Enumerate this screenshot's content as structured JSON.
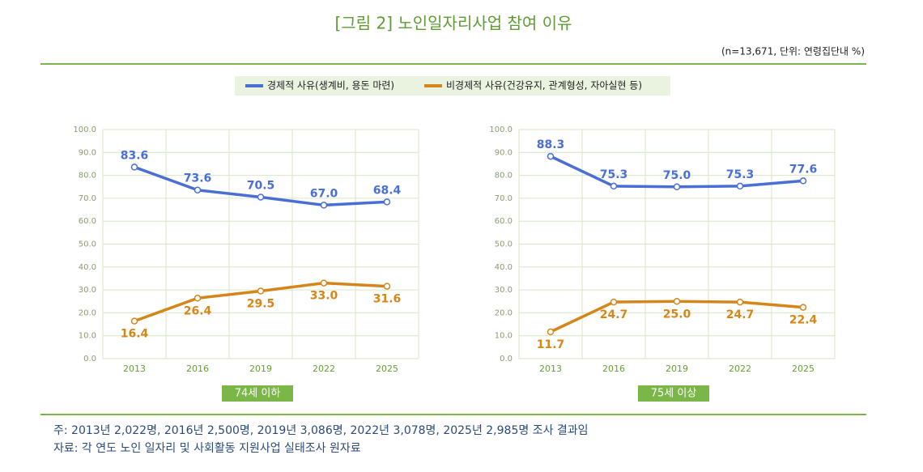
{
  "title": "[그림 2] 노인일자리사업 참여 이유",
  "unit_note": "(n=13,671, 단위: 연령집단내 %)",
  "footnotes": [
    "주: 2013년 2,022명, 2016년 2,500명, 2019년 3,086명, 2022년 3,078명, 2025년 2,985명 조사 결과임",
    "자료: 각 연도 노인 일자리 및 사회활동 지원사업 실태조사 원자료"
  ],
  "chart_data": [
    {
      "type": "line",
      "panel_label": "74세 이하",
      "categories": [
        "2013",
        "2016",
        "2019",
        "2022",
        "2025"
      ],
      "ylim": [
        0,
        100
      ],
      "yticks": [
        {
          "value": 0,
          "label": "0.0"
        },
        {
          "value": 10,
          "label": "10.0"
        },
        {
          "value": 20,
          "label": "20.0"
        },
        {
          "value": 30,
          "label": "30.0"
        },
        {
          "value": 40,
          "label": "40.0"
        },
        {
          "value": 50,
          "label": "50.0"
        },
        {
          "value": 60,
          "label": "60.0"
        },
        {
          "value": 70,
          "label": "70.0"
        },
        {
          "value": 80,
          "label": "80.0"
        },
        {
          "value": 90,
          "label": "90.0"
        },
        {
          "value": 100,
          "label": "100.0"
        }
      ],
      "grid": true,
      "series": [
        {
          "name": "경제적 사유(생계비, 용돈 마련)",
          "color": "#4a6fd4",
          "values": [
            83.6,
            73.6,
            70.5,
            67,
            68.4
          ],
          "value_labels": [
            "83.6",
            "73.6",
            "70.5",
            "67.0",
            "68.4"
          ]
        },
        {
          "name": "비경제적 사유(건강유지, 관계형성, 자아실현 등)",
          "color": "#d4861a",
          "values": [
            16.4,
            26.4,
            29.5,
            33,
            31.6
          ],
          "value_labels": [
            "16.4",
            "26.4",
            "29.5",
            "33.0",
            "31.6"
          ]
        }
      ]
    },
    {
      "type": "line",
      "panel_label": "75세 이상",
      "categories": [
        "2013",
        "2016",
        "2019",
        "2022",
        "2025"
      ],
      "ylim": [
        0,
        100
      ],
      "yticks": [
        {
          "value": 0,
          "label": "0.0"
        },
        {
          "value": 10,
          "label": "10.0"
        },
        {
          "value": 20,
          "label": "20.0"
        },
        {
          "value": 30,
          "label": "30.0"
        },
        {
          "value": 40,
          "label": "40.0"
        },
        {
          "value": 50,
          "label": "50.0"
        },
        {
          "value": 60,
          "label": "60.0"
        },
        {
          "value": 70,
          "label": "70.0"
        },
        {
          "value": 80,
          "label": "80.0"
        },
        {
          "value": 90,
          "label": "90.0"
        },
        {
          "value": 100,
          "label": "100.0"
        }
      ],
      "grid": true,
      "series": [
        {
          "name": "경제적 사유(생계비, 용돈 마련)",
          "color": "#4a6fd4",
          "values": [
            88.3,
            75.3,
            75,
            75.3,
            77.6
          ],
          "value_labels": [
            "88.3",
            "75.3",
            "75.0",
            "75.3",
            "77.6"
          ]
        },
        {
          "name": "비경제적 사유(건강유지, 관계형성, 자아실현 등)",
          "color": "#d4861a",
          "values": [
            11.7,
            24.7,
            25,
            24.7,
            22.4
          ],
          "value_labels": [
            "11.7",
            "24.7",
            "25.0",
            "24.7",
            "22.4"
          ]
        }
      ]
    }
  ]
}
